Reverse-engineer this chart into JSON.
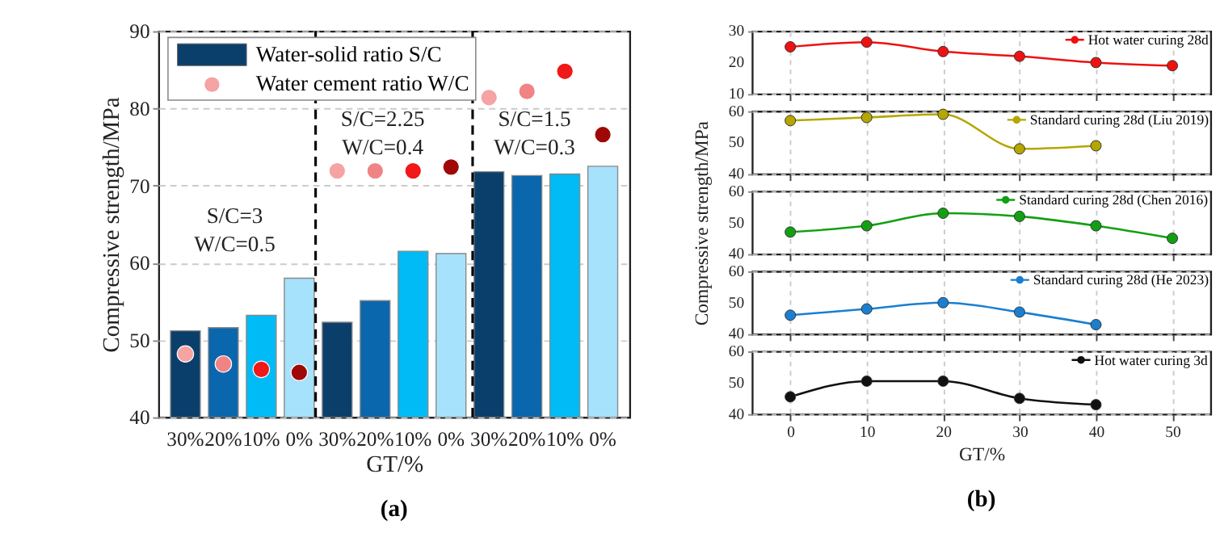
{
  "chart_data": [
    {
      "type": "bar",
      "xlabel": "GT/%",
      "ylabel": "Compressive strength/MPa",
      "categories": [
        "30%",
        "20%",
        "10%",
        "0%",
        "30%",
        "20%",
        "10%",
        "0%",
        "30%",
        "20%",
        "10%",
        "0%"
      ],
      "ylim": [
        40,
        90
      ],
      "yticks": [
        40,
        50,
        60,
        70,
        80,
        90
      ],
      "grid": "y",
      "legend": "top left",
      "series": [
        {
          "name": "Water-solid ratio S/C",
          "type": "bar",
          "colors": [
            "#0b3f6b",
            "#0a66ad",
            "#00bbf5",
            "#a6e2fb",
            "#0b3f6b",
            "#0a66ad",
            "#00bbf5",
            "#a6e2fb",
            "#0b3f6b",
            "#0a66ad",
            "#00bbf5",
            "#a6e2fb"
          ],
          "values": [
            51.2,
            51.6,
            53.2,
            58.0,
            52.3,
            55.1,
            61.5,
            61.2,
            71.8,
            71.3,
            71.5,
            72.5
          ]
        },
        {
          "name": "Water cement ratio W/C",
          "type": "scatter",
          "marker": "circle",
          "colors": [
            "#f5a3a3",
            "#f08484",
            "#f01818",
            "#a00808",
            "#f5a3a3",
            "#f08484",
            "#f01818",
            "#a00808",
            "#f5a3a3",
            "#f08484",
            "#f01818",
            "#a00808"
          ],
          "values": [
            48.2,
            46.9,
            46.2,
            45.8,
            71.9,
            71.9,
            71.9,
            72.4,
            81.4,
            82.2,
            84.8,
            76.6
          ]
        }
      ],
      "annotations": [
        "S/C=3\nW/C=0.5",
        "S/C=2.25\nW/C=0.4",
        "S/C=1.5\nW/C=0.3",
        "(a)"
      ]
    },
    {
      "type": "line",
      "xlim": [
        -5,
        55
      ],
      "xticks": [
        0,
        10,
        20,
        30,
        40,
        50
      ],
      "ylim": [
        10,
        30
      ],
      "yticks": [
        10,
        20,
        30
      ],
      "grid": true,
      "legend": "top right",
      "marker": "circle",
      "tick_labels": "y",
      "series": [
        {
          "name": "Hot water curing 28d",
          "color": "#ee1111",
          "x": [
            0,
            10,
            20,
            30,
            40,
            50
          ],
          "values": [
            25,
            26.5,
            23.5,
            22,
            20,
            19
          ]
        }
      ]
    },
    {
      "type": "line",
      "xlim": [
        -5,
        55
      ],
      "xticks": [
        0,
        10,
        20,
        30,
        40,
        50
      ],
      "ylim": [
        40,
        60
      ],
      "yticks": [
        40,
        50,
        60
      ],
      "grid": true,
      "legend": "top right",
      "marker": "circle",
      "tick_labels": "y",
      "series": [
        {
          "name": "Standard curing 28d (Liu 2019)",
          "color": "#b5a600",
          "x": [
            0,
            10,
            20,
            30,
            40
          ],
          "values": [
            57,
            58,
            59,
            48,
            49
          ]
        }
      ]
    },
    {
      "type": "line",
      "ylabel": "Compressive strength/MPa",
      "xlim": [
        -5,
        55
      ],
      "xticks": [
        0,
        10,
        20,
        30,
        40,
        50
      ],
      "ylim": [
        40,
        60
      ],
      "yticks": [
        40,
        50,
        60
      ],
      "grid": true,
      "legend": "top right",
      "marker": "circle",
      "tick_labels": "y",
      "series": [
        {
          "name": "Standard curing 28d (Chen 2016)",
          "color": "#12a012",
          "x": [
            0,
            10,
            20,
            30,
            40,
            50
          ],
          "values": [
            47,
            49,
            53,
            52,
            49,
            45
          ]
        }
      ]
    },
    {
      "type": "line",
      "xlim": [
        -5,
        55
      ],
      "xticks": [
        0,
        10,
        20,
        30,
        40,
        50
      ],
      "ylim": [
        40,
        60
      ],
      "yticks": [
        40,
        50,
        60
      ],
      "grid": true,
      "legend": "top right",
      "marker": "circle",
      "tick_labels": "y",
      "series": [
        {
          "name": "Standard curing 28d (He 2023)",
          "color": "#1a7fd0",
          "x": [
            0,
            10,
            20,
            30,
            40
          ],
          "values": [
            46,
            48,
            50,
            47,
            43
          ]
        }
      ]
    },
    {
      "type": "line",
      "xlabel": "GT/%",
      "xlim": [
        -5,
        55
      ],
      "xticks": [
        0,
        10,
        20,
        30,
        40,
        50
      ],
      "ylim": [
        40,
        60
      ],
      "yticks": [
        40,
        50,
        60
      ],
      "grid": true,
      "legend": "top right",
      "marker": "circle",
      "series": [
        {
          "name": "Hot water curing 3d",
          "color": "#111111",
          "x": [
            0,
            10,
            20,
            30,
            40
          ],
          "values": [
            45.5,
            50.5,
            50.5,
            45,
            43
          ]
        }
      ],
      "annotations": [
        "(b)"
      ]
    }
  ]
}
